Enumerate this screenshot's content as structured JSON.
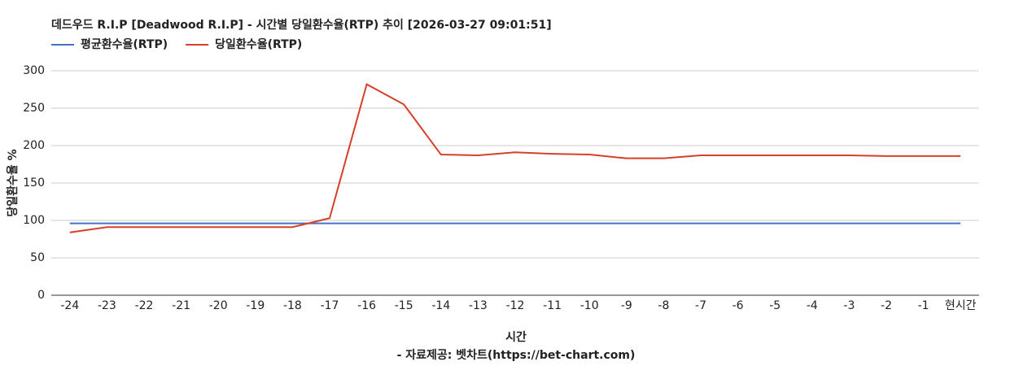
{
  "chart_data": {
    "type": "line",
    "title": "데드우드 R.I.P [Deadwood R.I.P] - 시간별 당일환수율(RTP) 추이 [2026-03-27 09:01:51]",
    "x_label": "시간",
    "y_label": "당일환수율 %",
    "source": "- 자료제공: 벳차트(https://bet-chart.com)",
    "categories": [
      "-24",
      "-23",
      "-22",
      "-21",
      "-20",
      "-19",
      "-18",
      "-17",
      "-16",
      "-15",
      "-14",
      "-13",
      "-12",
      "-11",
      "-10",
      "-9",
      "-8",
      "-7",
      "-6",
      "-5",
      "-4",
      "-3",
      "-2",
      "-1",
      "현시간"
    ],
    "series": [
      {
        "name": "평균환수율(RTP)",
        "color": "#4472c4",
        "values": [
          96,
          96,
          96,
          96,
          96,
          96,
          96,
          96,
          96,
          96,
          96,
          96,
          96,
          96,
          96,
          96,
          96,
          96,
          96,
          96,
          96,
          96,
          96,
          96,
          96
        ]
      },
      {
        "name": "당일환수율(RTP)",
        "color": "#d6402a",
        "values": [
          84,
          91,
          91,
          91,
          91,
          91,
          91,
          103,
          282,
          255,
          188,
          187,
          191,
          189,
          188,
          183,
          183,
          187,
          187,
          187,
          187,
          187,
          186,
          186,
          186
        ]
      }
    ],
    "ylim": [
      0,
      300
    ],
    "yticks": [
      0,
      50,
      100,
      150,
      200,
      250,
      300
    ],
    "grid": true,
    "legend": "top-left"
  }
}
